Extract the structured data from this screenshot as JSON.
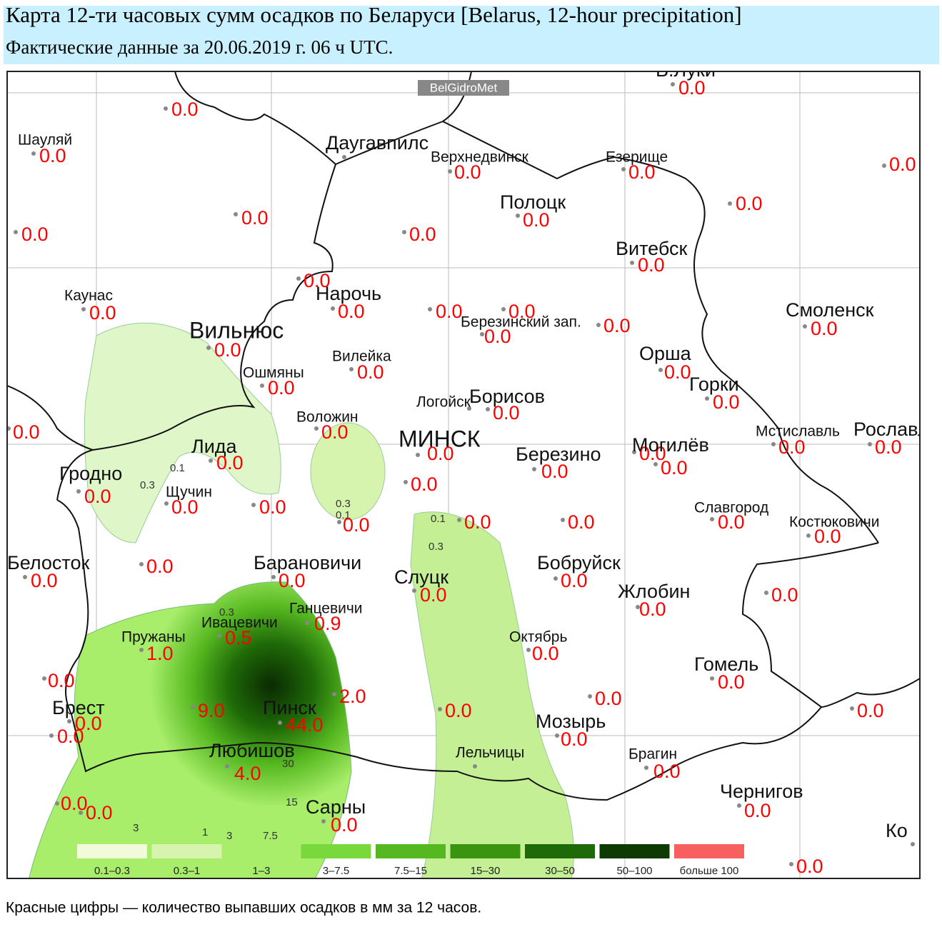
{
  "header": {
    "title": "Карта 12-ти часовых сумм осадков по Беларуси [Belarus, 12-hour precipitation]",
    "subtitle": "Фактические данные за 20.06.2019 г. 06 ч UTC."
  },
  "map": {
    "watermark": "BelGidroMet",
    "stations": [
      {
        "name": "В.Луки",
        "value": "0.0"
      },
      {
        "value": "0.0"
      },
      {
        "name": "Шауляй",
        "value": "0.0"
      },
      {
        "name": "Даугавпилс"
      },
      {
        "name": "Верхнедвинск",
        "value": "0.0"
      },
      {
        "name": "Езерище",
        "value": "0.0"
      },
      {
        "value": "0.0"
      },
      {
        "value": "0.0"
      },
      {
        "value": "0.0"
      },
      {
        "value": "0.0"
      },
      {
        "value": "0.0"
      },
      {
        "name": "Полоцк",
        "value": "0.0"
      },
      {
        "name": "Витебск",
        "value": "0.0"
      },
      {
        "value": "0.0"
      },
      {
        "name": "Нарочь",
        "value": "0.0"
      },
      {
        "name": "Каунас",
        "value": "0.0"
      },
      {
        "value": "0.0"
      },
      {
        "value": "0.0"
      },
      {
        "name": "Березинский зап.",
        "value": "0.0"
      },
      {
        "value": "0.0"
      },
      {
        "name": "Смоленск",
        "value": "0.0"
      },
      {
        "name": "Вильнюс",
        "value": "0.0"
      },
      {
        "name": "Вилейка",
        "value": "0.0"
      },
      {
        "name": "Орша",
        "value": "0.0"
      },
      {
        "name": "Ошмяны",
        "value": "0.0"
      },
      {
        "name": "Горки",
        "value": "0.0"
      },
      {
        "name": "Логойск"
      },
      {
        "name": "Борисов",
        "value": "0.0"
      },
      {
        "name": "Воложин",
        "value": "0.0"
      },
      {
        "value": "0.0"
      },
      {
        "name": "МИНСК",
        "value": "0.0"
      },
      {
        "name": "Лида",
        "value": "0.0"
      },
      {
        "name": "Березино",
        "value": "0.0"
      },
      {
        "value": "0.0"
      },
      {
        "name": "Могилёв",
        "value": "0.0"
      },
      {
        "name": "Мстиславль",
        "value": "0.0"
      },
      {
        "name": "Рославль",
        "value": "0.0"
      },
      {
        "name": "Гродно",
        "value": "0.0"
      },
      {
        "name": "Щучин",
        "value": "0.0"
      },
      {
        "value": "0.0"
      },
      {
        "value": "0.0"
      },
      {
        "value": "0.0"
      },
      {
        "value": "0.0"
      },
      {
        "value": "0.0"
      },
      {
        "name": "Славгород",
        "value": "0.0"
      },
      {
        "name": "Костюковичи",
        "value": "0.0"
      },
      {
        "name": "Белосток",
        "value": "0.0"
      },
      {
        "value": "0.0"
      },
      {
        "name": "Барановичи",
        "value": "0.0"
      },
      {
        "name": "Слуцк",
        "value": "0.0"
      },
      {
        "name": "Бобруйск",
        "value": "0.0"
      },
      {
        "name": "Жлобин",
        "value": "0.0"
      },
      {
        "value": "0.0"
      },
      {
        "name": "Ганцевичи",
        "value": "0.9"
      },
      {
        "name": "Ивацевичи",
        "value": "0.5"
      },
      {
        "name": "Пружаны",
        "value": "1.0"
      },
      {
        "name": "Октябрь",
        "value": "0.0"
      },
      {
        "name": "Гомель",
        "value": "0.0"
      },
      {
        "value": "0.0"
      },
      {
        "value": "2.0"
      },
      {
        "value": "0.0"
      },
      {
        "name": "Брест",
        "value": "0.0"
      },
      {
        "value": "0.0"
      },
      {
        "value": "9.0"
      },
      {
        "name": "Пинск",
        "value": "44.0"
      },
      {
        "value": "0.0"
      },
      {
        "name": "Мозырь",
        "value": "0.0"
      },
      {
        "value": "0.0"
      },
      {
        "name": "Любишов",
        "value": "4.0"
      },
      {
        "name": "Лельчицы"
      },
      {
        "name": "Брагин",
        "value": "0.0"
      },
      {
        "name": "Чернигов",
        "value": "0.0"
      },
      {
        "value": "0.0"
      },
      {
        "value": "0.0"
      },
      {
        "name": "Сарны",
        "value": "0.0"
      },
      {
        "name": "Ко"
      },
      {
        "value": "0.0"
      }
    ],
    "contour_labels": [
      "0.1",
      "0.3",
      "0.3",
      "0.1",
      "0.1",
      "0.3",
      "0.3",
      "3",
      "1",
      "3",
      "7.5",
      "15",
      "30"
    ],
    "legend": [
      {
        "label": "0.1–0.3",
        "color": "#f2fbd9"
      },
      {
        "label": "0.3–1",
        "color": "#d6f4ae"
      },
      {
        "label": "1–3",
        "color": "#a8ee6a"
      },
      {
        "label": "3–7.5",
        "color": "#78d83c"
      },
      {
        "label": "7.5–15",
        "color": "#56b820"
      },
      {
        "label": "15–30",
        "color": "#3a9410"
      },
      {
        "label": "30–50",
        "color": "#1f6a08"
      },
      {
        "label": "50–100",
        "color": "#0e3a04"
      },
      {
        "label": "больше 100",
        "color": "#f86060"
      }
    ]
  },
  "footer": {
    "note": "Красные цифры — количество выпавших осадков в мм за 12 часов."
  }
}
